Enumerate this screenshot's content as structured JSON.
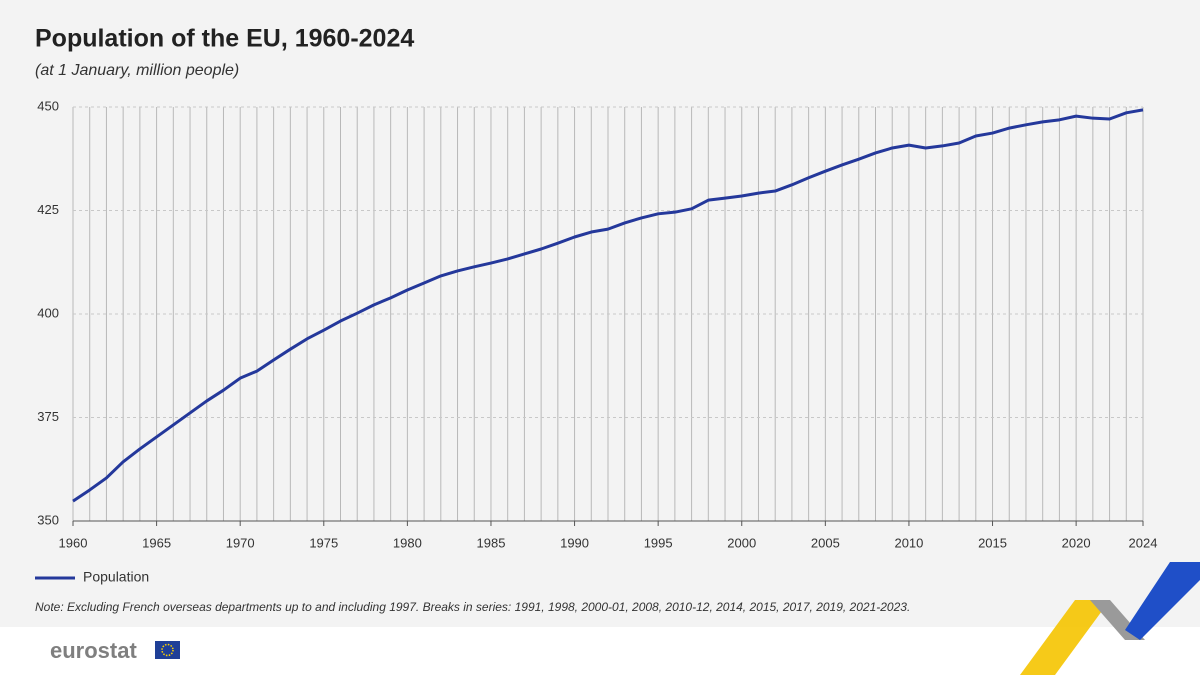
{
  "chart_data": {
    "type": "line",
    "title": "Population of the EU, 1960-2024",
    "subtitle": "(at 1 January, million people)",
    "note": "Note: Excluding French overseas departments up to and including 1997. Breaks in series: 1991, 1998, 2000-01, 2008, 2010-12, 2014, 2015, 2017, 2019, 2021-2023.",
    "x": [
      1960,
      1961,
      1962,
      1963,
      1964,
      1965,
      1966,
      1967,
      1968,
      1969,
      1970,
      1971,
      1972,
      1973,
      1974,
      1975,
      1976,
      1977,
      1978,
      1979,
      1980,
      1981,
      1982,
      1983,
      1984,
      1985,
      1986,
      1987,
      1988,
      1989,
      1990,
      1991,
      1992,
      1993,
      1994,
      1995,
      1996,
      1997,
      1998,
      1999,
      2000,
      2001,
      2002,
      2003,
      2004,
      2005,
      2006,
      2007,
      2008,
      2009,
      2010,
      2011,
      2012,
      2013,
      2014,
      2015,
      2016,
      2017,
      2018,
      2019,
      2020,
      2021,
      2022,
      2023,
      2024
    ],
    "series": [
      {
        "name": "Population",
        "color": "#24389b",
        "values": [
          354.8,
          357.5,
          360.4,
          364.3,
          367.4,
          370.3,
          373.2,
          376.1,
          379.0,
          381.6,
          384.5,
          386.2,
          388.9,
          391.5,
          394.0,
          396.1,
          398.3,
          400.2,
          402.2,
          403.9,
          405.8,
          407.5,
          409.2,
          410.4,
          411.4,
          412.3,
          413.3,
          414.5,
          415.7,
          417.1,
          418.6,
          419.8,
          420.5,
          422.0,
          423.2,
          424.2,
          424.6,
          425.4,
          427.5,
          428.0,
          428.5,
          429.2,
          429.7,
          431.2,
          432.9,
          434.5,
          436.0,
          437.4,
          438.9,
          440.1,
          440.8,
          440.1,
          440.6,
          441.3,
          443.0,
          443.7,
          444.9,
          445.7,
          446.4,
          446.9,
          447.8,
          447.3,
          447.1,
          448.6,
          449.3
        ]
      }
    ],
    "xlim": [
      1960,
      2024
    ],
    "xticks": [
      1960,
      1965,
      1970,
      1975,
      1980,
      1985,
      1990,
      1995,
      2000,
      2005,
      2010,
      2015,
      2020,
      2024
    ],
    "ylim": [
      350,
      450
    ],
    "yticks": [
      350,
      375,
      400,
      425,
      450
    ],
    "grid": true
  },
  "branding": "eurostat"
}
